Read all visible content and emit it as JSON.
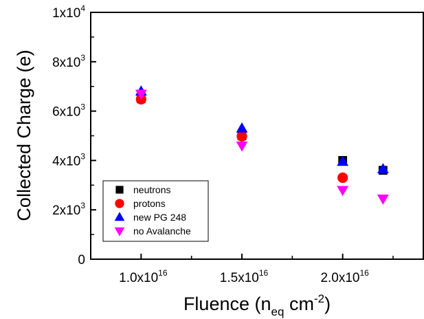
{
  "chart_data": {
    "type": "scatter",
    "xlabel": "Fluence (n",
    "xlabel_sub": "eq",
    "xlabel_mid": " cm",
    "xlabel_sup": "-2",
    "xlabel_end": ")",
    "ylabel": "Collected Charge (e)",
    "xlim": [
      7500000000000000.0,
      2.4e+16
    ],
    "ylim": [
      0,
      10000
    ],
    "x_ticks": [
      {
        "value": 1e+16,
        "mantissa": "1.0x10",
        "exp": "16"
      },
      {
        "value": 1.5e+16,
        "mantissa": "1.5x10",
        "exp": "16"
      },
      {
        "value": 2e+16,
        "mantissa": "2.0x10",
        "exp": "16"
      }
    ],
    "y_ticks": [
      {
        "value": 0,
        "mantissa": "0",
        "exp": ""
      },
      {
        "value": 2000,
        "mantissa": "2x10",
        "exp": "3"
      },
      {
        "value": 4000,
        "mantissa": "4x10",
        "exp": "3"
      },
      {
        "value": 6000,
        "mantissa": "6x10",
        "exp": "3"
      },
      {
        "value": 8000,
        "mantissa": "8x10",
        "exp": "3"
      },
      {
        "value": 10000,
        "mantissa": "1x10",
        "exp": "4"
      }
    ],
    "grid": false,
    "legend_position": "bottom-left",
    "series": [
      {
        "name": "neutrons",
        "marker": "square",
        "color": "#000000",
        "points": [
          [
            1e+16,
            6500
          ],
          [
            1.5e+16,
            5000
          ],
          [
            2e+16,
            4000
          ],
          [
            2.2e+16,
            3600
          ]
        ]
      },
      {
        "name": "protons",
        "marker": "circle",
        "color": "#ff0000",
        "points": [
          [
            1e+16,
            6480
          ],
          [
            1.5e+16,
            4980
          ],
          [
            2e+16,
            3300
          ]
        ]
      },
      {
        "name": "new PG 248",
        "marker": "triangle-up",
        "color": "#0000ff",
        "points": [
          [
            1e+16,
            6800
          ],
          [
            1.5e+16,
            5300
          ],
          [
            2e+16,
            3950
          ],
          [
            2.2e+16,
            3650
          ]
        ]
      },
      {
        "name": "no Avalanche",
        "marker": "triangle-down",
        "color": "#ff00ff",
        "points": [
          [
            1e+16,
            6700
          ],
          [
            1.5e+16,
            4600
          ],
          [
            2e+16,
            2800
          ],
          [
            2.2e+16,
            2450
          ]
        ]
      }
    ]
  }
}
